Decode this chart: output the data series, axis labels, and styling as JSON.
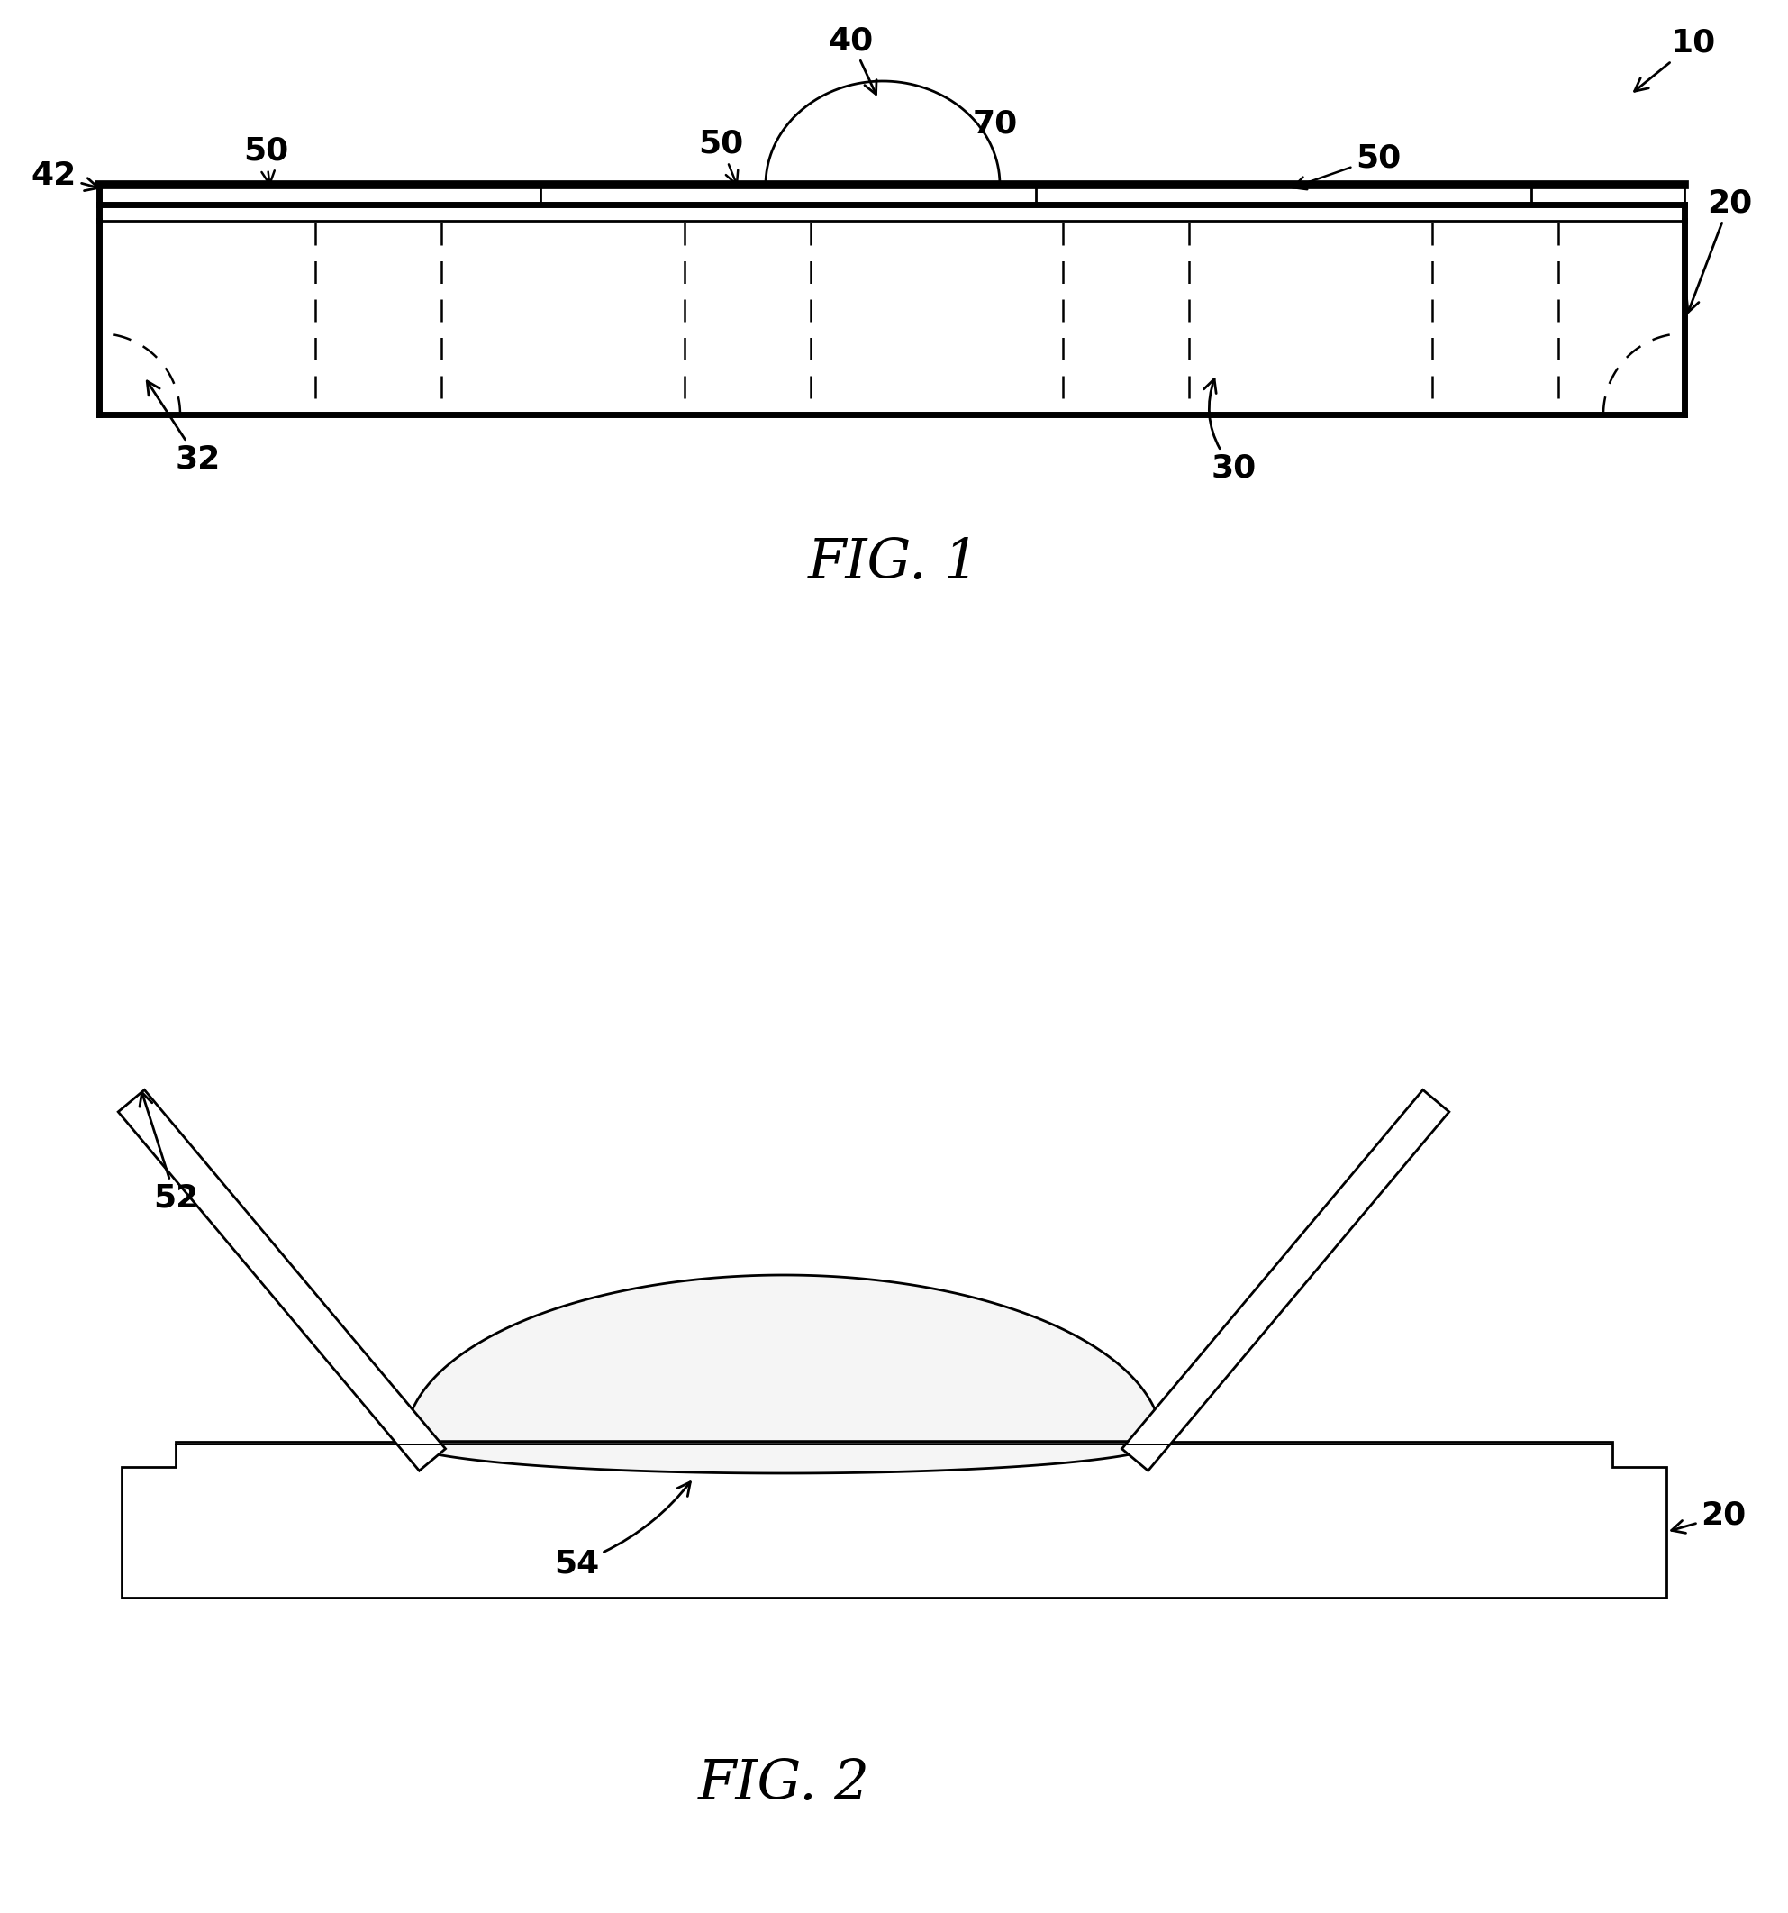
{
  "bg_color": "#ffffff",
  "line_color": "#000000",
  "fig1_caption": "FIG. 1",
  "fig2_caption": "FIG. 2",
  "ann_fs": 26,
  "cap_fs": 44,
  "lw_main": 2.0,
  "lw_thick": 5.0,
  "lw_thin": 1.8
}
